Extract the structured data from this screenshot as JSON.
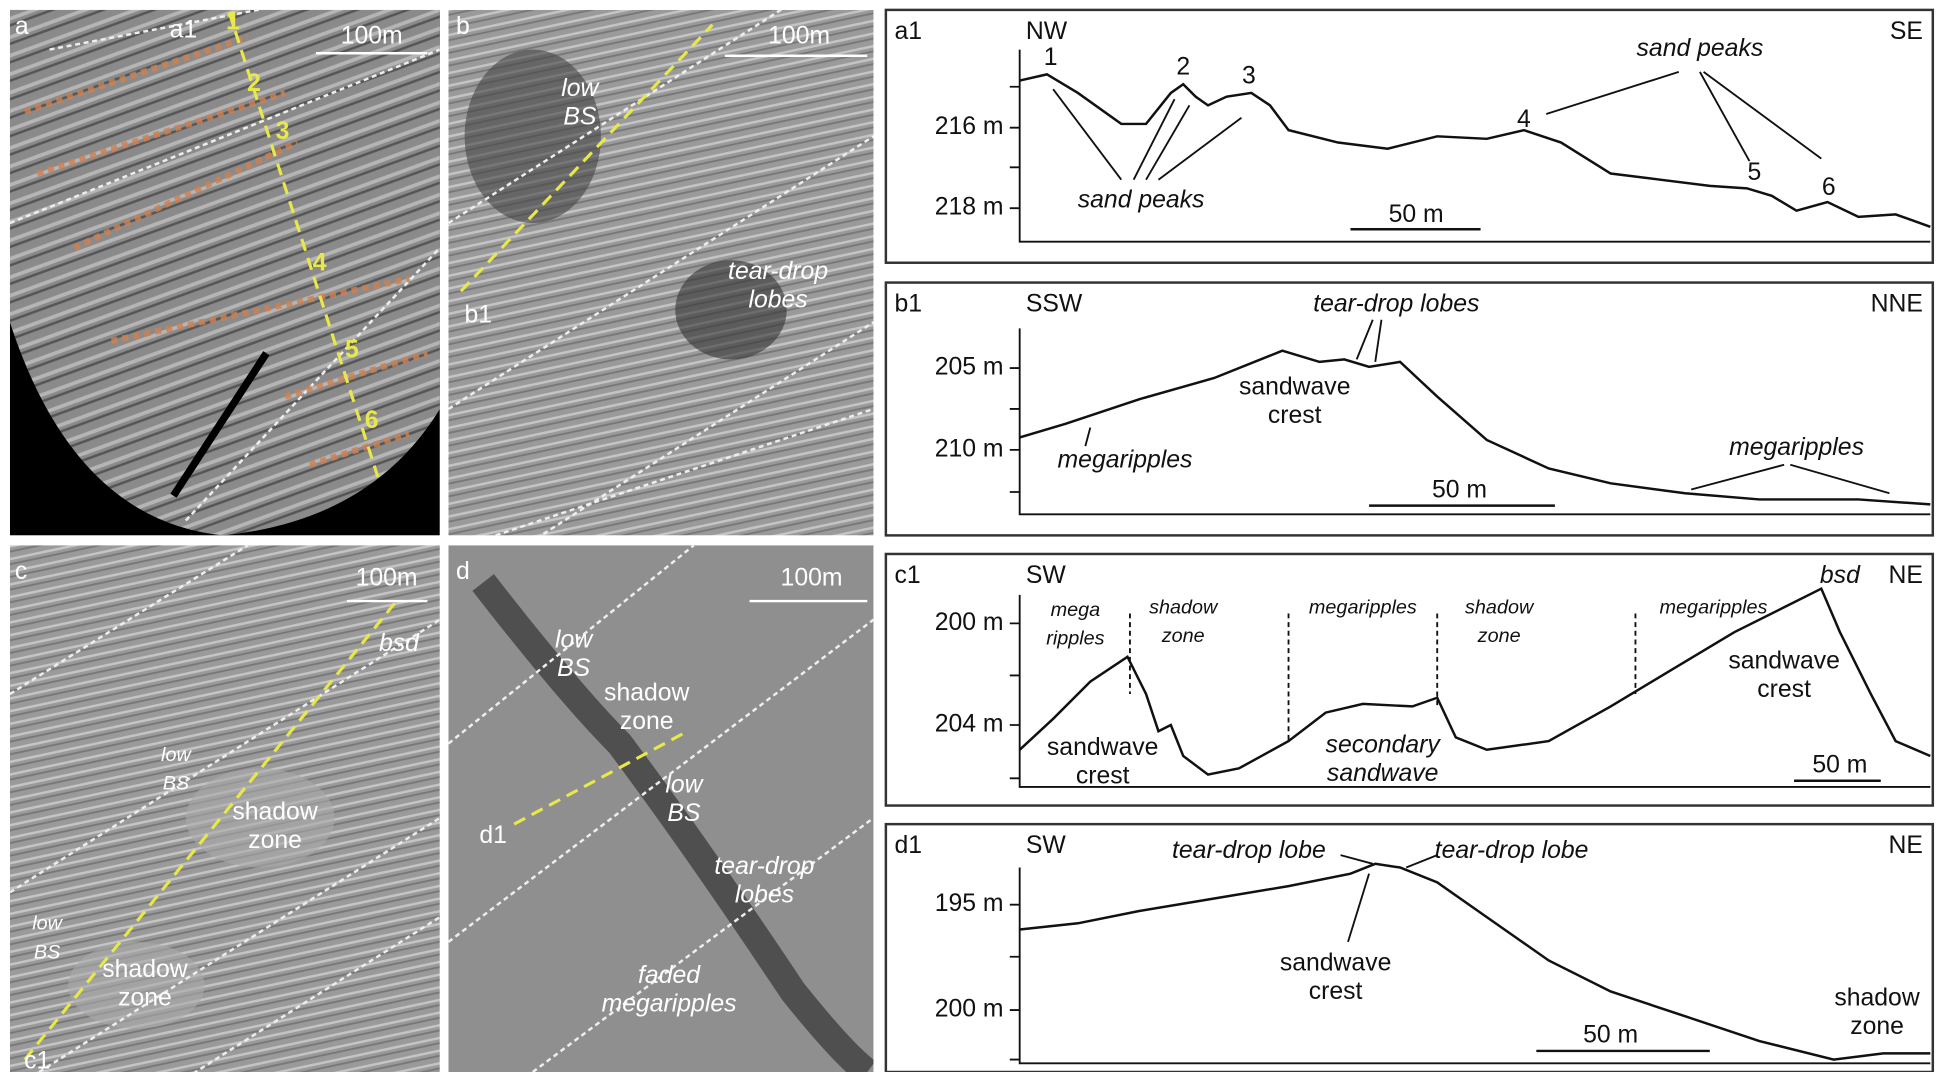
{
  "maps": [
    {
      "label": "a",
      "scale": "100m",
      "profile": "a1",
      "notes": [
        [
          "1"
        ],
        [
          "2"
        ],
        [
          "3"
        ],
        [
          "4"
        ],
        [
          "5"
        ],
        [
          "6"
        ]
      ]
    },
    {
      "label": "b",
      "scale": "100m",
      "profile": "b1",
      "notes": [
        [
          "low",
          "BS"
        ],
        [
          "tear-drop",
          "lobes"
        ]
      ]
    },
    {
      "label": "c",
      "scale": "100m",
      "profile": "c1",
      "notes": [
        [
          "bsd"
        ],
        [
          "low",
          "BS"
        ],
        [
          "shadow",
          "zone"
        ],
        [
          "low",
          "BS"
        ],
        [
          "shadow",
          "zone"
        ]
      ]
    },
    {
      "label": "d",
      "scale": "100m",
      "profile": "d1",
      "notes": [
        [
          "low",
          "BS"
        ],
        [
          "shadow",
          "zone"
        ],
        [
          "low",
          "BS"
        ],
        [
          "tear-drop",
          "lobes"
        ],
        [
          "faded",
          "megaripples"
        ]
      ]
    }
  ],
  "profiles": [
    {
      "label": "a1",
      "left": "NW",
      "right": "SE",
      "yticks": [
        "216 m",
        "218 m"
      ],
      "scale": "50 m",
      "notes": [
        [
          "1"
        ],
        [
          "2"
        ],
        [
          "3"
        ],
        [
          "4"
        ],
        [
          "5"
        ],
        [
          "6"
        ],
        [
          "sand peaks"
        ],
        [
          "sand peaks"
        ]
      ]
    },
    {
      "label": "b1",
      "left": "SSW",
      "right": "NNE",
      "yticks": [
        "205 m",
        "210 m"
      ],
      "scale": "50 m",
      "notes": [
        [
          "tear-drop lobes"
        ],
        [
          "sandwave",
          "crest"
        ],
        [
          "megaripples"
        ],
        [
          "megaripples"
        ]
      ]
    },
    {
      "label": "c1",
      "left": "SW",
      "right": "NE",
      "yticks": [
        "200 m",
        "204 m"
      ],
      "scale": "50 m",
      "notes": [
        [
          "mega",
          "ripples"
        ],
        [
          "shadow",
          "zone"
        ],
        [
          "megaripples"
        ],
        [
          "shadow",
          "zone"
        ],
        [
          "megaripples"
        ],
        [
          "bsd"
        ],
        [
          "sandwave",
          "crest"
        ],
        [
          "sandwave",
          "crest"
        ],
        [
          "secondary",
          "sandwave"
        ]
      ]
    },
    {
      "label": "d1",
      "left": "SW",
      "right": "NE",
      "yticks": [
        "195 m",
        "200 m"
      ],
      "scale": "50 m",
      "notes": [
        [
          "tear-drop lobe"
        ],
        [
          "tear-drop lobe"
        ],
        [
          "sandwave",
          "crest"
        ],
        [
          "shadow",
          "zone"
        ]
      ]
    }
  ]
}
